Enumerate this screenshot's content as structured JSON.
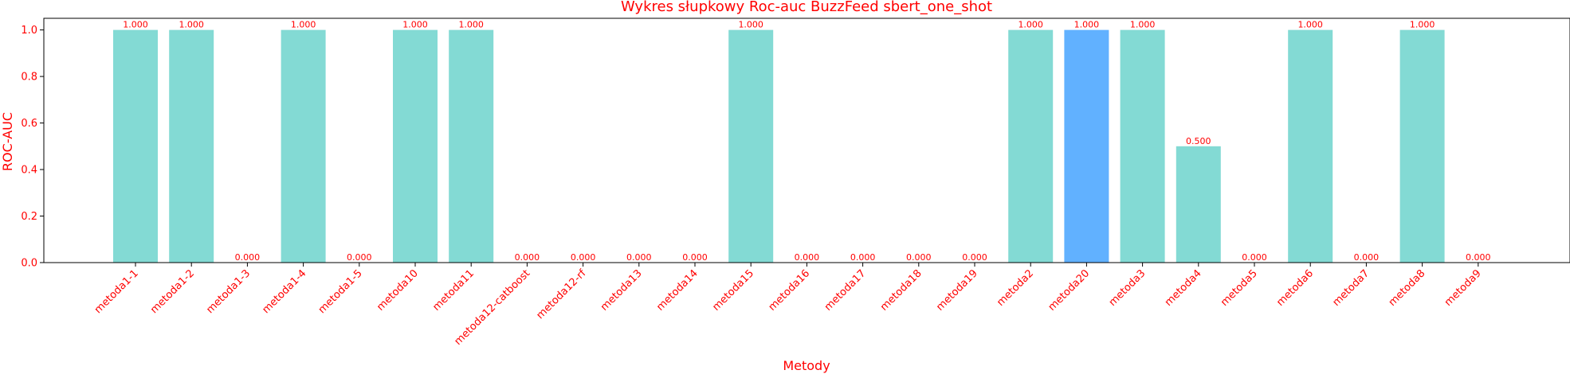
{
  "chart_data": {
    "type": "bar",
    "title": "Wykres słupkowy Roc-auc BuzzFeed sbert_one_shot",
    "xlabel": "Metody",
    "ylabel": "ROC-AUC",
    "ylim": [
      0,
      1.05
    ],
    "yticks": [
      "0.0",
      "0.2",
      "0.4",
      "0.6",
      "0.8",
      "1.0"
    ],
    "grid": false,
    "categories": [
      "metoda1-1",
      "metoda1-2",
      "metoda1-3",
      "metoda1-4",
      "metoda1-5",
      "metoda10",
      "metoda11",
      "metoda12-catboost",
      "metoda12-rf",
      "metoda13",
      "metoda14",
      "metoda15",
      "metoda16",
      "metoda17",
      "metoda18",
      "metoda19",
      "metoda2",
      "metoda20",
      "metoda3",
      "metoda4",
      "metoda5",
      "metoda6",
      "metoda7",
      "metoda8",
      "metoda9"
    ],
    "values": [
      1.0,
      1.0,
      0.0,
      1.0,
      0.0,
      1.0,
      1.0,
      0.0,
      0.0,
      0.0,
      0.0,
      1.0,
      0.0,
      0.0,
      0.0,
      0.0,
      1.0,
      1.0,
      1.0,
      0.5,
      0.0,
      1.0,
      0.0,
      1.0,
      0.0
    ],
    "value_labels": [
      "1.000",
      "1.000",
      "0.000",
      "1.000",
      "0.000",
      "1.000",
      "1.000",
      "0.000",
      "0.000",
      "0.000",
      "0.000",
      "1.000",
      "0.000",
      "0.000",
      "0.000",
      "0.000",
      "1.000",
      "1.000",
      "1.000",
      "0.500",
      "0.000",
      "1.000",
      "0.000",
      "1.000",
      "0.000"
    ],
    "bar_color": "#83dad4",
    "highlight_color": "#61b1ff",
    "highlight_category": "metoda20",
    "text_color": "#ff0000"
  }
}
